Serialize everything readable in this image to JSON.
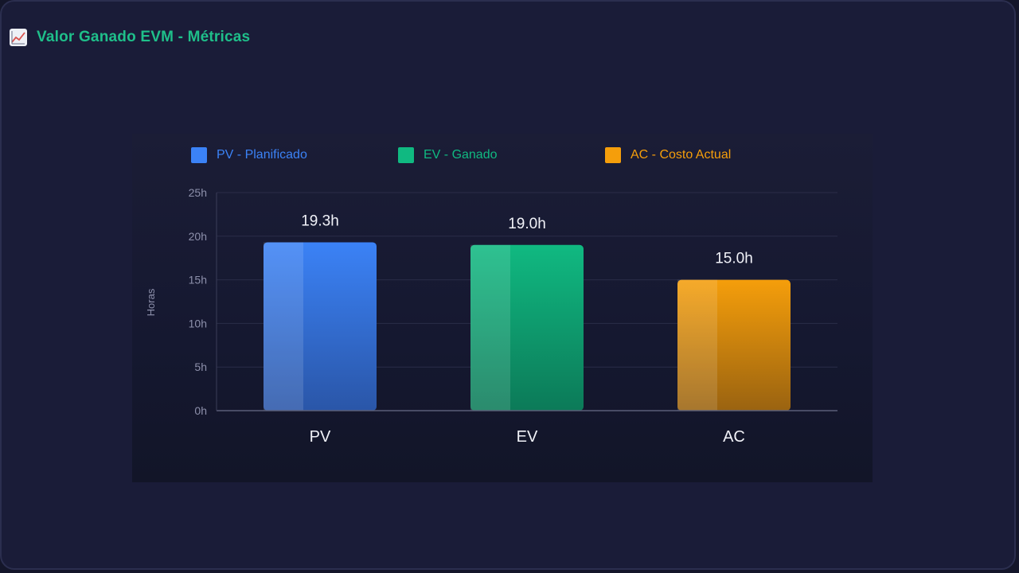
{
  "header": {
    "title": "Valor Ganado EVM - Métricas",
    "icon": "chart-line-icon"
  },
  "chart_data": {
    "type": "bar",
    "categories": [
      "PV",
      "EV",
      "AC"
    ],
    "values": [
      19.3,
      19.0,
      15.0
    ],
    "value_labels": [
      "19.3h",
      "19.0h",
      "15.0h"
    ],
    "colors": [
      "#3b82f6",
      "#10b981",
      "#f59e0b"
    ],
    "legend": [
      {
        "label": "PV - Planificado",
        "color": "#3b82f6"
      },
      {
        "label": "EV - Ganado",
        "color": "#10b981"
      },
      {
        "label": "AC - Costo Actual",
        "color": "#f59e0b"
      }
    ],
    "legend_position": "top",
    "title": "",
    "xlabel": "",
    "ylabel": "Horas",
    "ylim": [
      0,
      25
    ],
    "yticks": [
      0,
      5,
      10,
      15,
      20,
      25
    ],
    "ytick_labels": [
      "0h",
      "5h",
      "10h",
      "15h",
      "20h",
      "25h"
    ],
    "grid": true
  }
}
